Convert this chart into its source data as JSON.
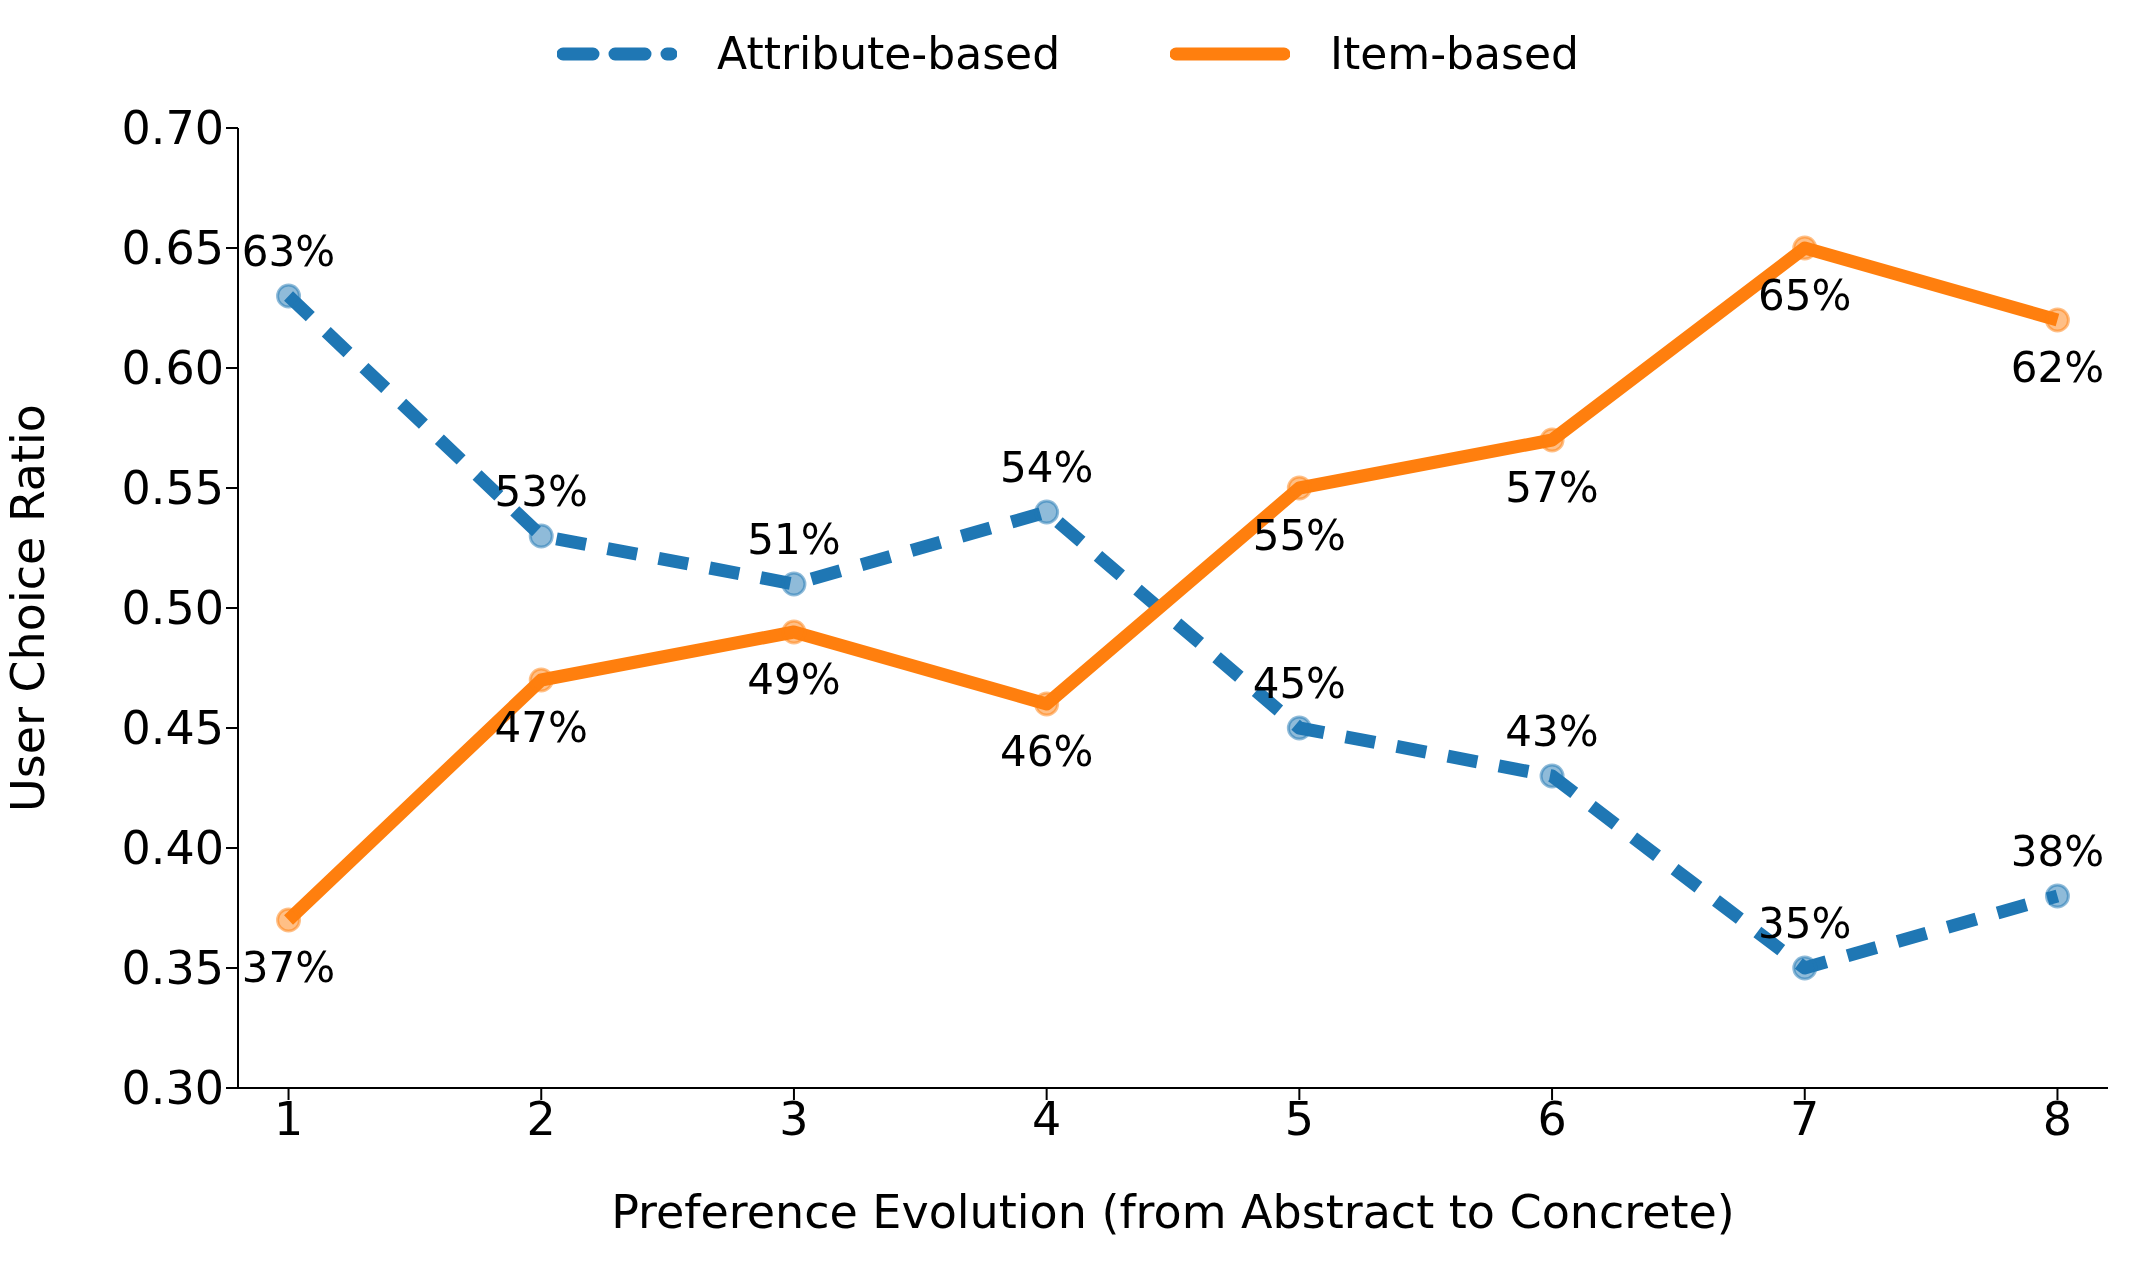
{
  "chart_data": {
    "type": "line",
    "xlabel": "Preference Evolution (from Abstract to Concrete)",
    "ylabel": "User Choice Ratio",
    "x": [
      1,
      2,
      3,
      4,
      5,
      6,
      7,
      8
    ],
    "series": [
      {
        "name": "Attribute-based",
        "color": "#1f77b4",
        "line_style": "dashed",
        "values": [
          0.63,
          0.53,
          0.51,
          0.54,
          0.45,
          0.43,
          0.35,
          0.38
        ],
        "value_labels": [
          "63%",
          "53%",
          "51%",
          "54%",
          "45%",
          "43%",
          "35%",
          "38%"
        ]
      },
      {
        "name": "Item-based",
        "color": "#ff7f0e",
        "line_style": "solid",
        "values": [
          0.37,
          0.47,
          0.49,
          0.46,
          0.55,
          0.57,
          0.65,
          0.62
        ],
        "value_labels": [
          "37%",
          "47%",
          "49%",
          "46%",
          "55%",
          "57%",
          "65%",
          "62%"
        ]
      }
    ],
    "xlim": [
      0.8,
      8.2
    ],
    "xticks": [
      1,
      2,
      3,
      4,
      5,
      6,
      7,
      8
    ],
    "ylim": [
      0.3,
      0.7
    ],
    "yticks": [
      {
        "value": 0.3,
        "label": "0.30"
      },
      {
        "value": 0.35,
        "label": "0.35"
      },
      {
        "value": 0.4,
        "label": "0.40"
      },
      {
        "value": 0.45,
        "label": "0.45"
      },
      {
        "value": 0.5,
        "label": "0.50"
      },
      {
        "value": 0.55,
        "label": "0.55"
      },
      {
        "value": 0.6,
        "label": "0.60"
      },
      {
        "value": 0.65,
        "label": "0.65"
      },
      {
        "value": 0.7,
        "label": "0.70"
      }
    ],
    "marker": "circle",
    "grid": false,
    "legend": "top"
  }
}
